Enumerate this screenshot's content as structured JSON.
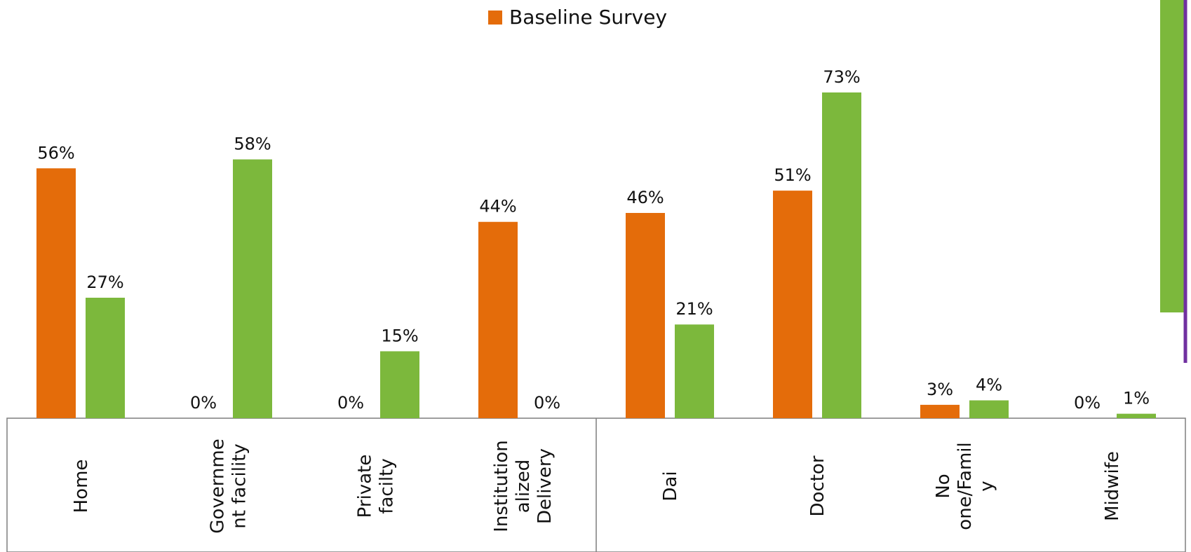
{
  "chart_data": {
    "type": "bar",
    "categories": [
      "Home",
      "Governme nt facility",
      "Private facilty",
      "Institution alized Delivery",
      "Dai",
      "Doctor",
      "No one/Famil y",
      "Midwife"
    ],
    "series": [
      {
        "name": "Baseline Survey",
        "color": "#E46C0A",
        "values": [
          56,
          0,
          0,
          44,
          46,
          51,
          3,
          0
        ],
        "labels": [
          "56%",
          "0%",
          "0%",
          "44%",
          "46%",
          "51%",
          "3%",
          "0%"
        ]
      },
      {
        "name": "",
        "color": "#7CB83C",
        "values": [
          27,
          58,
          15,
          0,
          21,
          73,
          4,
          1
        ],
        "labels": [
          "27%",
          "58%",
          "15%",
          "0%",
          "21%",
          "73%",
          "4%",
          "1%"
        ]
      }
    ],
    "category_lines": [
      [
        "Home"
      ],
      [
        "Governme",
        "nt facility"
      ],
      [
        "Private",
        "facilty"
      ],
      [
        "Institution",
        "alized",
        "Delivery"
      ],
      [
        "Dai"
      ],
      [
        "Doctor"
      ],
      [
        "No",
        "one/Famil",
        "y"
      ],
      [
        "Midwife"
      ]
    ],
    "ylim": [
      0,
      80
    ],
    "grid": false,
    "legend": "top-center"
  },
  "side_bar_color": "#7CB83C",
  "side_line_color": "#7030A0"
}
